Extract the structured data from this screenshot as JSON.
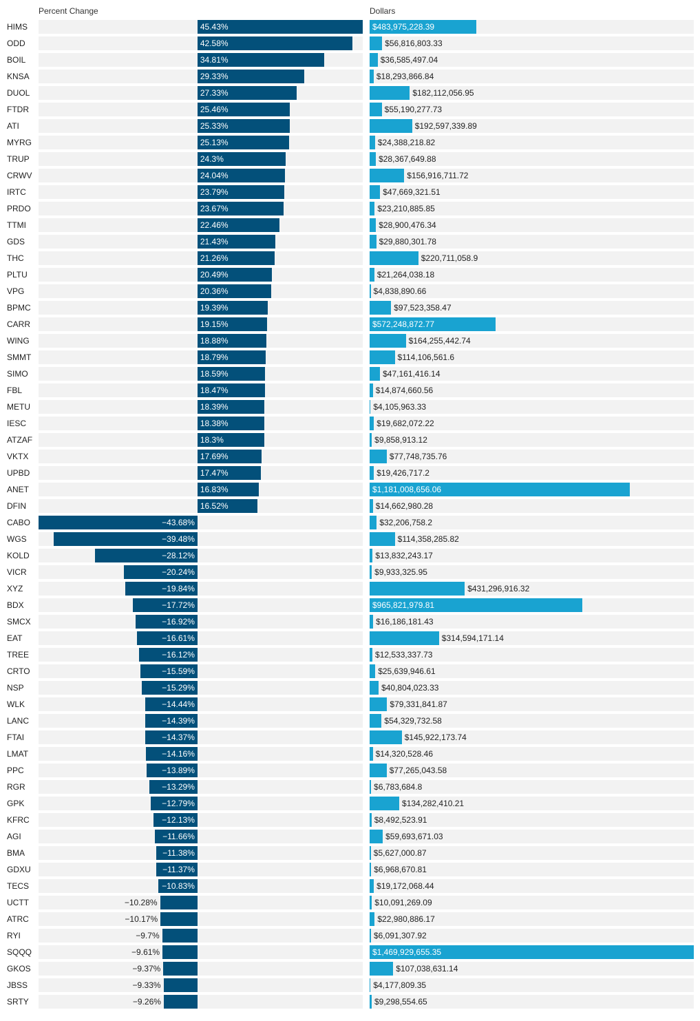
{
  "chart_data": {
    "type": "bar",
    "headers": {
      "percent": "Percent Change",
      "dollars": "Dollars"
    },
    "colors": {
      "percent_bar": "#03507a",
      "dollars_bar": "#19a3d1",
      "row_background": "#f2f2f2"
    },
    "percent_range": [
      -43.68,
      45.43
    ],
    "dollars_range": [
      0,
      1469929655.35
    ],
    "rows": [
      {
        "ticker": "HIMS",
        "pct": 45.43,
        "pct_label": "45.43%",
        "dollars": 483975228.39,
        "dollars_label": "$483,975,228.39"
      },
      {
        "ticker": "ODD",
        "pct": 42.58,
        "pct_label": "42.58%",
        "dollars": 56816803.33,
        "dollars_label": "$56,816,803.33"
      },
      {
        "ticker": "BOIL",
        "pct": 34.81,
        "pct_label": "34.81%",
        "dollars": 36585497.04,
        "dollars_label": "$36,585,497.04"
      },
      {
        "ticker": "KNSA",
        "pct": 29.33,
        "pct_label": "29.33%",
        "dollars": 18293866.84,
        "dollars_label": "$18,293,866.84"
      },
      {
        "ticker": "DUOL",
        "pct": 27.33,
        "pct_label": "27.33%",
        "dollars": 182112056.95,
        "dollars_label": "$182,112,056.95"
      },
      {
        "ticker": "FTDR",
        "pct": 25.46,
        "pct_label": "25.46%",
        "dollars": 55190277.73,
        "dollars_label": "$55,190,277.73"
      },
      {
        "ticker": "ATI",
        "pct": 25.33,
        "pct_label": "25.33%",
        "dollars": 192597339.89,
        "dollars_label": "$192,597,339.89"
      },
      {
        "ticker": "MYRG",
        "pct": 25.13,
        "pct_label": "25.13%",
        "dollars": 24388218.82,
        "dollars_label": "$24,388,218.82"
      },
      {
        "ticker": "TRUP",
        "pct": 24.3,
        "pct_label": "24.3%",
        "dollars": 28367649.88,
        "dollars_label": "$28,367,649.88"
      },
      {
        "ticker": "CRWV",
        "pct": 24.04,
        "pct_label": "24.04%",
        "dollars": 156916711.72,
        "dollars_label": "$156,916,711.72"
      },
      {
        "ticker": "IRTC",
        "pct": 23.79,
        "pct_label": "23.79%",
        "dollars": 47669321.51,
        "dollars_label": "$47,669,321.51"
      },
      {
        "ticker": "PRDO",
        "pct": 23.67,
        "pct_label": "23.67%",
        "dollars": 23210885.85,
        "dollars_label": "$23,210,885.85"
      },
      {
        "ticker": "TTMI",
        "pct": 22.46,
        "pct_label": "22.46%",
        "dollars": 28900476.34,
        "dollars_label": "$28,900,476.34"
      },
      {
        "ticker": "GDS",
        "pct": 21.43,
        "pct_label": "21.43%",
        "dollars": 29880301.78,
        "dollars_label": "$29,880,301.78"
      },
      {
        "ticker": "THC",
        "pct": 21.26,
        "pct_label": "21.26%",
        "dollars": 220711058.9,
        "dollars_label": "$220,711,058.9"
      },
      {
        "ticker": "PLTU",
        "pct": 20.49,
        "pct_label": "20.49%",
        "dollars": 21264038.18,
        "dollars_label": "$21,264,038.18"
      },
      {
        "ticker": "VPG",
        "pct": 20.36,
        "pct_label": "20.36%",
        "dollars": 4838890.66,
        "dollars_label": "$4,838,890.66"
      },
      {
        "ticker": "BPMC",
        "pct": 19.39,
        "pct_label": "19.39%",
        "dollars": 97523358.47,
        "dollars_label": "$97,523,358.47"
      },
      {
        "ticker": "CARR",
        "pct": 19.15,
        "pct_label": "19.15%",
        "dollars": 572248872.77,
        "dollars_label": "$572,248,872.77"
      },
      {
        "ticker": "WING",
        "pct": 18.88,
        "pct_label": "18.88%",
        "dollars": 164255442.74,
        "dollars_label": "$164,255,442.74"
      },
      {
        "ticker": "SMMT",
        "pct": 18.79,
        "pct_label": "18.79%",
        "dollars": 114106561.6,
        "dollars_label": "$114,106,561.6"
      },
      {
        "ticker": "SIMO",
        "pct": 18.59,
        "pct_label": "18.59%",
        "dollars": 47161416.14,
        "dollars_label": "$47,161,416.14"
      },
      {
        "ticker": "FBL",
        "pct": 18.47,
        "pct_label": "18.47%",
        "dollars": 14874660.56,
        "dollars_label": "$14,874,660.56"
      },
      {
        "ticker": "METU",
        "pct": 18.39,
        "pct_label": "18.39%",
        "dollars": 4105963.33,
        "dollars_label": "$4,105,963.33"
      },
      {
        "ticker": "IESC",
        "pct": 18.38,
        "pct_label": "18.38%",
        "dollars": 19682072.22,
        "dollars_label": "$19,682,072.22"
      },
      {
        "ticker": "ATZAF",
        "pct": 18.3,
        "pct_label": "18.3%",
        "dollars": 9858913.12,
        "dollars_label": "$9,858,913.12"
      },
      {
        "ticker": "VKTX",
        "pct": 17.69,
        "pct_label": "17.69%",
        "dollars": 77748735.76,
        "dollars_label": "$77,748,735.76"
      },
      {
        "ticker": "UPBD",
        "pct": 17.47,
        "pct_label": "17.47%",
        "dollars": 19426717.2,
        "dollars_label": "$19,426,717.2"
      },
      {
        "ticker": "ANET",
        "pct": 16.83,
        "pct_label": "16.83%",
        "dollars": 1181008656.06,
        "dollars_label": "$1,181,008,656.06"
      },
      {
        "ticker": "DFIN",
        "pct": 16.52,
        "pct_label": "16.52%",
        "dollars": 14662980.28,
        "dollars_label": "$14,662,980.28"
      },
      {
        "ticker": "CABO",
        "pct": -43.68,
        "pct_label": "−43.68%",
        "dollars": 32206758.2,
        "dollars_label": "$32,206,758.2"
      },
      {
        "ticker": "WGS",
        "pct": -39.48,
        "pct_label": "−39.48%",
        "dollars": 114358285.82,
        "dollars_label": "$114,358,285.82"
      },
      {
        "ticker": "KOLD",
        "pct": -28.12,
        "pct_label": "−28.12%",
        "dollars": 13832243.17,
        "dollars_label": "$13,832,243.17"
      },
      {
        "ticker": "VICR",
        "pct": -20.24,
        "pct_label": "−20.24%",
        "dollars": 9933325.95,
        "dollars_label": "$9,933,325.95"
      },
      {
        "ticker": "XYZ",
        "pct": -19.84,
        "pct_label": "−19.84%",
        "dollars": 431296916.32,
        "dollars_label": "$431,296,916.32"
      },
      {
        "ticker": "BDX",
        "pct": -17.72,
        "pct_label": "−17.72%",
        "dollars": 965821979.81,
        "dollars_label": "$965,821,979.81"
      },
      {
        "ticker": "SMCX",
        "pct": -16.92,
        "pct_label": "−16.92%",
        "dollars": 16186181.43,
        "dollars_label": "$16,186,181.43"
      },
      {
        "ticker": "EAT",
        "pct": -16.61,
        "pct_label": "−16.61%",
        "dollars": 314594171.14,
        "dollars_label": "$314,594,171.14"
      },
      {
        "ticker": "TREE",
        "pct": -16.12,
        "pct_label": "−16.12%",
        "dollars": 12533337.73,
        "dollars_label": "$12,533,337.73"
      },
      {
        "ticker": "CRTO",
        "pct": -15.59,
        "pct_label": "−15.59%",
        "dollars": 25639946.61,
        "dollars_label": "$25,639,946.61"
      },
      {
        "ticker": "NSP",
        "pct": -15.29,
        "pct_label": "−15.29%",
        "dollars": 40804023.33,
        "dollars_label": "$40,804,023.33"
      },
      {
        "ticker": "WLK",
        "pct": -14.44,
        "pct_label": "−14.44%",
        "dollars": 79331841.87,
        "dollars_label": "$79,331,841.87"
      },
      {
        "ticker": "LANC",
        "pct": -14.39,
        "pct_label": "−14.39%",
        "dollars": 54329732.58,
        "dollars_label": "$54,329,732.58"
      },
      {
        "ticker": "FTAI",
        "pct": -14.37,
        "pct_label": "−14.37%",
        "dollars": 145922173.74,
        "dollars_label": "$145,922,173.74"
      },
      {
        "ticker": "LMAT",
        "pct": -14.16,
        "pct_label": "−14.16%",
        "dollars": 14320528.46,
        "dollars_label": "$14,320,528.46"
      },
      {
        "ticker": "PPC",
        "pct": -13.89,
        "pct_label": "−13.89%",
        "dollars": 77265043.58,
        "dollars_label": "$77,265,043.58"
      },
      {
        "ticker": "RGR",
        "pct": -13.29,
        "pct_label": "−13.29%",
        "dollars": 6783684.8,
        "dollars_label": "$6,783,684.8"
      },
      {
        "ticker": "GPK",
        "pct": -12.79,
        "pct_label": "−12.79%",
        "dollars": 134282410.21,
        "dollars_label": "$134,282,410.21"
      },
      {
        "ticker": "KFRC",
        "pct": -12.13,
        "pct_label": "−12.13%",
        "dollars": 8492523.91,
        "dollars_label": "$8,492,523.91"
      },
      {
        "ticker": "AGI",
        "pct": -11.66,
        "pct_label": "−11.66%",
        "dollars": 59693671.03,
        "dollars_label": "$59,693,671.03"
      },
      {
        "ticker": "BMA",
        "pct": -11.38,
        "pct_label": "−11.38%",
        "dollars": 5627000.87,
        "dollars_label": "$5,627,000.87"
      },
      {
        "ticker": "GDXU",
        "pct": -11.37,
        "pct_label": "−11.37%",
        "dollars": 6968670.81,
        "dollars_label": "$6,968,670.81"
      },
      {
        "ticker": "TECS",
        "pct": -10.83,
        "pct_label": "−10.83%",
        "dollars": 19172068.44,
        "dollars_label": "$19,172,068.44"
      },
      {
        "ticker": "UCTT",
        "pct": -10.28,
        "pct_label": "−10.28%",
        "dollars": 10091269.09,
        "dollars_label": "$10,091,269.09"
      },
      {
        "ticker": "ATRC",
        "pct": -10.17,
        "pct_label": "−10.17%",
        "dollars": 22980886.17,
        "dollars_label": "$22,980,886.17"
      },
      {
        "ticker": "RYI",
        "pct": -9.7,
        "pct_label": "−9.7%",
        "dollars": 6091307.92,
        "dollars_label": "$6,091,307.92"
      },
      {
        "ticker": "SQQQ",
        "pct": -9.61,
        "pct_label": "−9.61%",
        "dollars": 1469929655.35,
        "dollars_label": "$1,469,929,655.35"
      },
      {
        "ticker": "GKOS",
        "pct": -9.37,
        "pct_label": "−9.37%",
        "dollars": 107038631.14,
        "dollars_label": "$107,038,631.14"
      },
      {
        "ticker": "JBSS",
        "pct": -9.33,
        "pct_label": "−9.33%",
        "dollars": 4177809.35,
        "dollars_label": "$4,177,809.35"
      },
      {
        "ticker": "SRTY",
        "pct": -9.26,
        "pct_label": "−9.26%",
        "dollars": 9298554.65,
        "dollars_label": "$9,298,554.65"
      }
    ]
  }
}
